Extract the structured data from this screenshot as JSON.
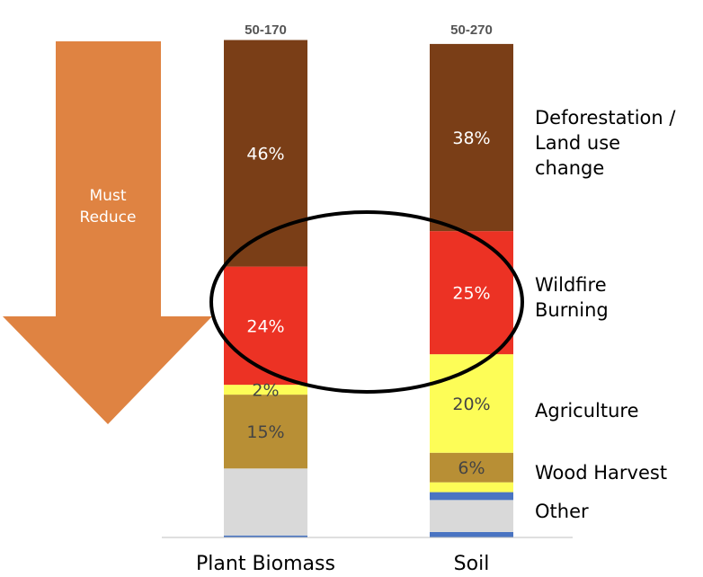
{
  "chart_data": {
    "type": "bar",
    "stacked": true,
    "categories": [
      "Plant Biomass",
      "Soil"
    ],
    "totals": [
      "50-170",
      "50-270"
    ],
    "stack_order_bottom_to_top": [
      "Other",
      "Wood Harvest",
      "Agriculture",
      "Wildfire Burning",
      "Deforestation / Land use change"
    ],
    "series": [
      {
        "name": "Deforestation / Land use change",
        "color": "#7a3e17",
        "text_color": "#ffffff",
        "values": [
          46,
          38
        ],
        "labels": [
          "46%",
          "38%"
        ]
      },
      {
        "name": "Wildfire Burning",
        "color": "#ec3224",
        "text_color": "#ffffff",
        "values": [
          24,
          25
        ],
        "labels": [
          "24%",
          "25%"
        ]
      },
      {
        "name": "Agriculture",
        "color": "#fdfd57",
        "text_color": "#444444",
        "values": [
          2,
          20
        ],
        "labels": [
          "2%",
          "20%"
        ]
      },
      {
        "name": "Wood Harvest",
        "color": "#b88f35",
        "text_color": "#444444",
        "values": [
          15,
          6
        ],
        "labels": [
          "15%",
          "6%"
        ]
      },
      {
        "name": "Other",
        "color": "#d9d9d9",
        "segments": [
          {
            "column": 0,
            "values": [
              0.4,
              13.6
            ],
            "colors": [
              "#4a74c2",
              "#d9d9d9"
            ]
          },
          {
            "column": 1,
            "values": [
              1.1,
              6.5,
              1.6,
              2.0
            ],
            "colors": [
              "#4a74c2",
              "#d9d9d9",
              "#4a74c2",
              "#fdfd57"
            ]
          }
        ]
      }
    ],
    "legend": [
      "Deforestation / Land use change",
      "Wildfire Burning",
      "Agriculture",
      "Wood Harvest",
      "Other"
    ],
    "legend_placement": "right",
    "ylim": [
      0,
      100
    ],
    "annotation": {
      "text": "Must Reduce",
      "shape": "down-arrow",
      "color": "#df8342"
    },
    "highlight": {
      "shape": "ellipse",
      "encloses": "Wildfire Burning"
    },
    "grid": false
  }
}
